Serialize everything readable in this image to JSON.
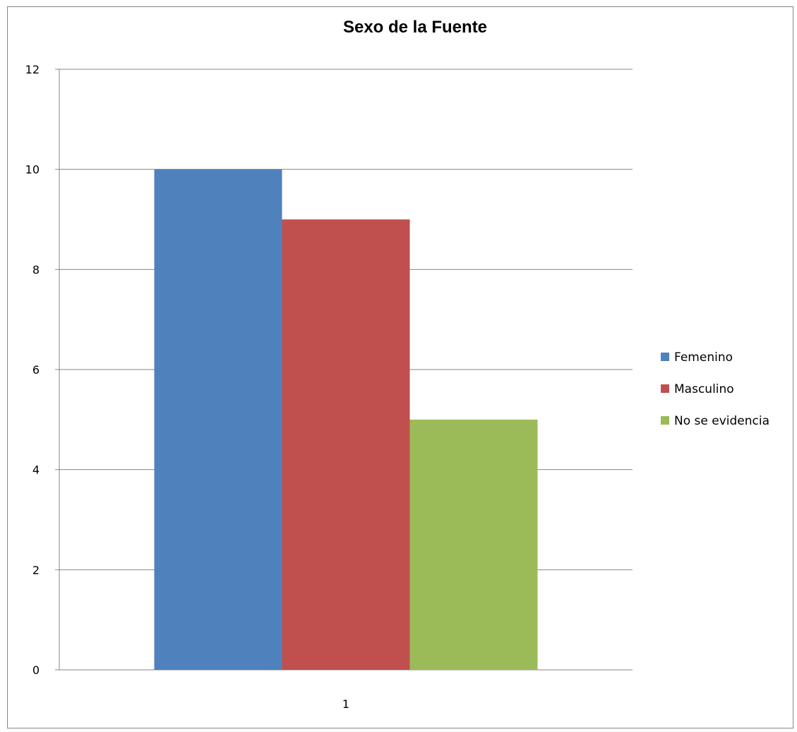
{
  "chart_data": {
    "type": "bar",
    "title": "Sexo de la Fuente",
    "xlabel": "",
    "ylabel": "",
    "categories": [
      "1"
    ],
    "series": [
      {
        "name": "Femenino",
        "values": [
          10
        ],
        "color": "#4F81BD"
      },
      {
        "name": "Masculino",
        "values": [
          9
        ],
        "color": "#C0504D"
      },
      {
        "name": "No se evidencia",
        "values": [
          5
        ],
        "color": "#9BBB59"
      }
    ],
    "ylim": [
      0,
      12
    ],
    "yticks": [
      0,
      2,
      4,
      6,
      8,
      10,
      12
    ],
    "grid": true,
    "legend_position": "right"
  }
}
